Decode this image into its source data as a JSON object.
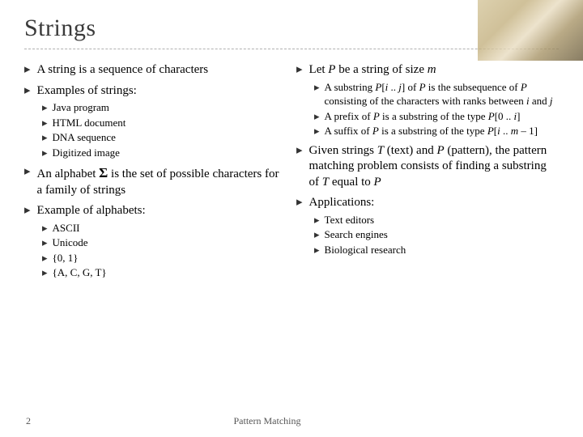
{
  "title": "Strings",
  "left": {
    "b1": "A string is a sequence of characters",
    "b2": "Examples of strings:",
    "b2_sub": [
      "Java program",
      "HTML document",
      "DNA sequence",
      "Digitized image"
    ],
    "b3_pre": "An alphabet ",
    "b3_sym": "Σ",
    "b3_post": " is the set of possible characters for a family of strings",
    "b4": "Example of alphabets:",
    "b4_sub": [
      "ASCII",
      "Unicode",
      "{0, 1}",
      "{A, C, G, T}"
    ]
  },
  "right": {
    "b1_pre": "Let ",
    "b1_p": "P",
    "b1_mid": " be a string of size ",
    "b1_m": "m",
    "s1_a": "A substring ",
    "s1_b": "P",
    "s1_c": "[",
    "s1_d": "i",
    "s1_e": " .. ",
    "s1_f": "j",
    "s1_g": "] of ",
    "s1_h": "P",
    "s1_i": " is the subsequence of ",
    "s1_j": "P",
    "s1_k": " consisting of the characters with ranks between ",
    "s1_l": "i",
    "s1_m": " and ",
    "s1_n": "j",
    "s2_a": "A prefix of ",
    "s2_b": "P",
    "s2_c": " is a substring of the type ",
    "s2_d": "P",
    "s2_e": "[0 .. ",
    "s2_f": "i",
    "s2_g": "]",
    "s3_a": "A suffix of ",
    "s3_b": "P",
    "s3_c": " is a substring of the type ",
    "s3_d": "P",
    "s3_e": "[",
    "s3_f": "i",
    "s3_g": " .. ",
    "s3_h": "m",
    "s3_i": " – 1]",
    "b2_a": "Given strings ",
    "b2_b": "T",
    "b2_c": " (text) and ",
    "b2_d": "P",
    "b2_e": " (pattern), the pattern matching problem consists of finding a substring of ",
    "b2_f": "T",
    "b2_g": " equal to ",
    "b2_h": "P",
    "b3": "Applications:",
    "b3_sub": [
      "Text editors",
      "Search engines",
      "Biological research"
    ]
  },
  "footer": {
    "page": "2",
    "center": "Pattern Matching"
  },
  "marker": "▸",
  "colors": {
    "text": "#333333",
    "divider": "#b0b0b0",
    "bg": "#ffffff"
  }
}
